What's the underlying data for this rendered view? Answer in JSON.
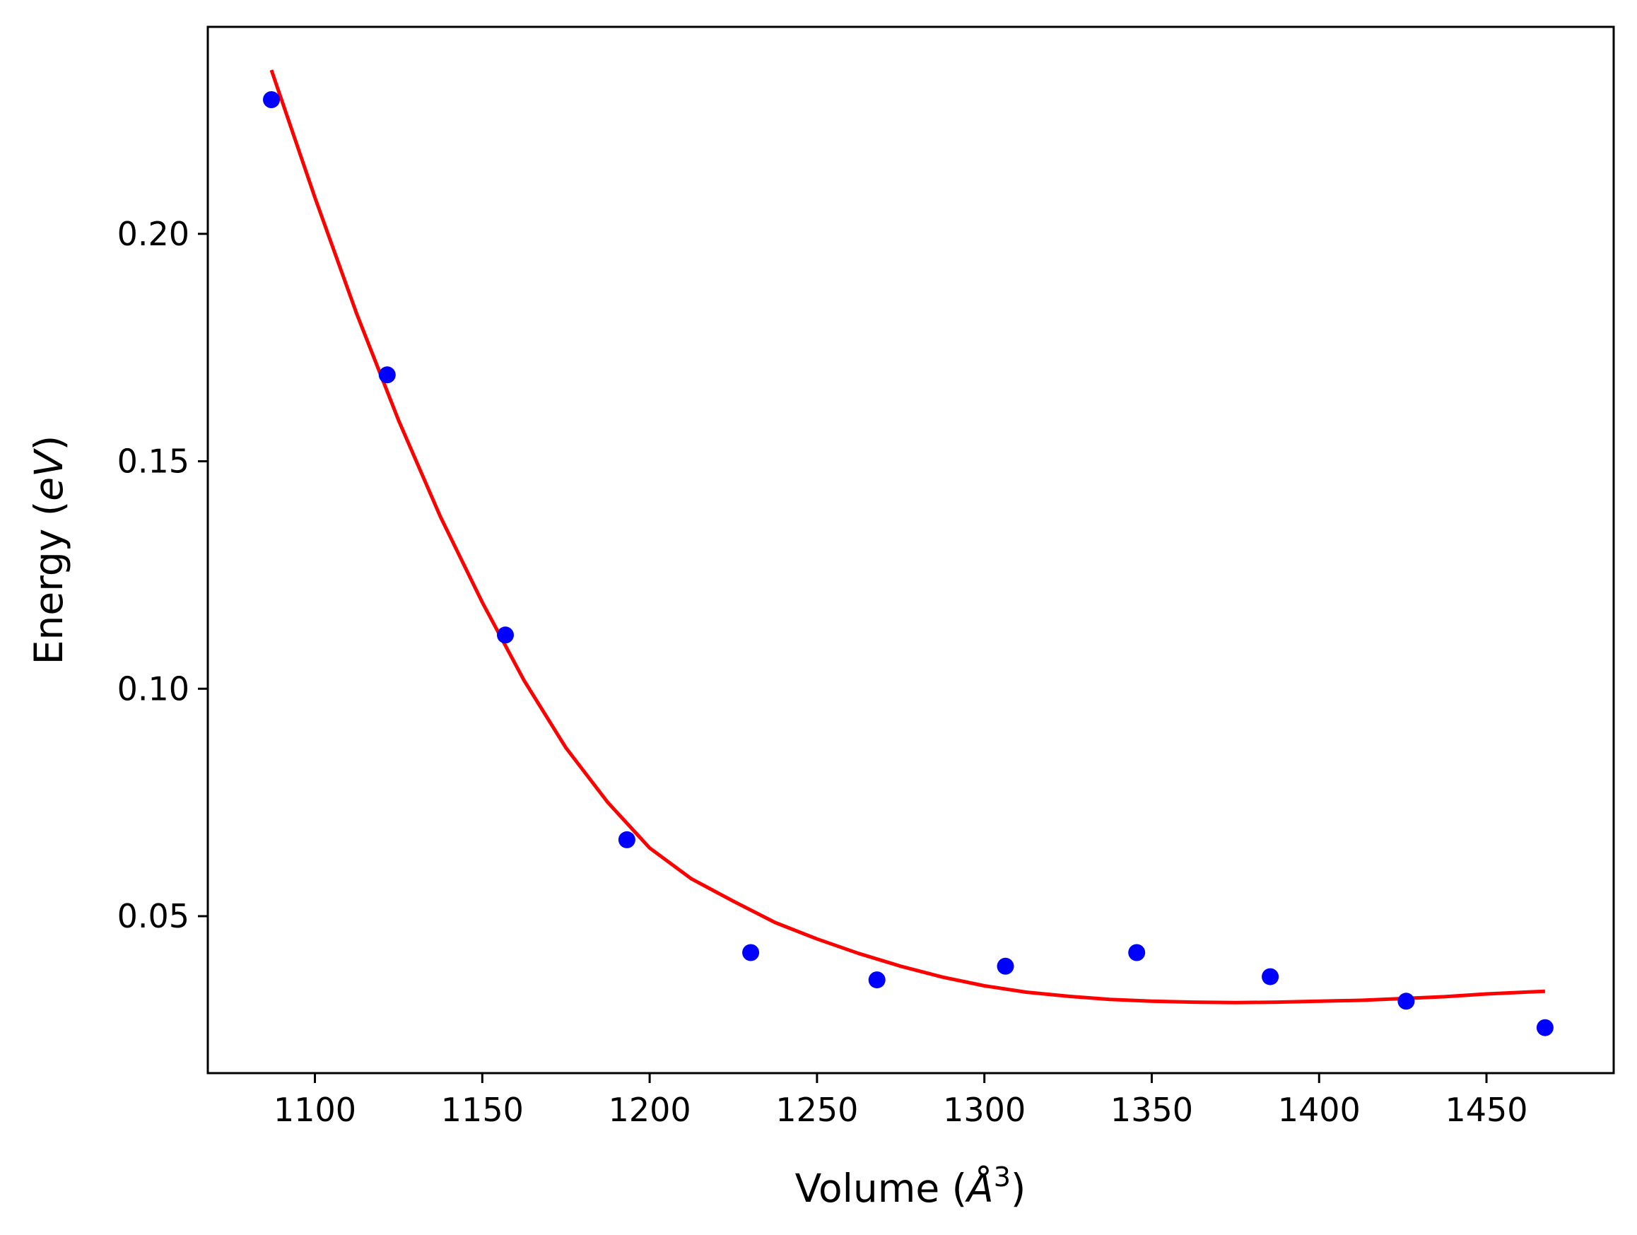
{
  "chart_data": {
    "type": "scatter",
    "title": "",
    "xlabel": {
      "prefix": "Volume (",
      "symbol": "Å",
      "superscript": "3",
      "suffix": ")"
    },
    "ylabel": {
      "prefix": "Energy (",
      "italic": "eV",
      "suffix": ")"
    },
    "xlim": [
      1068,
      1488
    ],
    "ylim": [
      0.0155,
      0.2455
    ],
    "x_ticks": [
      {
        "value": 1100,
        "label": "1100"
      },
      {
        "value": 1150,
        "label": "1150"
      },
      {
        "value": 1200,
        "label": "1200"
      },
      {
        "value": 1250,
        "label": "1250"
      },
      {
        "value": 1300,
        "label": "1300"
      },
      {
        "value": 1350,
        "label": "1350"
      },
      {
        "value": 1400,
        "label": "1400"
      },
      {
        "value": 1450,
        "label": "1450"
      }
    ],
    "y_ticks": [
      {
        "value": 0.05,
        "label": "0.05"
      },
      {
        "value": 0.1,
        "label": "0.10"
      },
      {
        "value": 0.15,
        "label": "0.15"
      },
      {
        "value": 0.2,
        "label": "0.20"
      }
    ],
    "grid": false,
    "series": [
      {
        "kind": "points",
        "color": "#0000ff",
        "points": [
          {
            "x": 1087.0,
            "y": 0.2295
          },
          {
            "x": 1121.6,
            "y": 0.169
          },
          {
            "x": 1156.9,
            "y": 0.1118
          },
          {
            "x": 1193.2,
            "y": 0.0668
          },
          {
            "x": 1230.2,
            "y": 0.042
          },
          {
            "x": 1267.9,
            "y": 0.036
          },
          {
            "x": 1306.3,
            "y": 0.039
          },
          {
            "x": 1345.5,
            "y": 0.042
          },
          {
            "x": 1385.4,
            "y": 0.0367
          },
          {
            "x": 1426.0,
            "y": 0.0313
          },
          {
            "x": 1467.5,
            "y": 0.0255
          }
        ]
      },
      {
        "kind": "line",
        "color": "#ff0000",
        "points": [
          {
            "x": 1087.0,
            "y": 0.236
          },
          {
            "x": 1100.0,
            "y": 0.208
          },
          {
            "x": 1112.5,
            "y": 0.1824
          },
          {
            "x": 1125.0,
            "y": 0.159
          },
          {
            "x": 1137.5,
            "y": 0.1378
          },
          {
            "x": 1150.0,
            "y": 0.119
          },
          {
            "x": 1162.5,
            "y": 0.1018
          },
          {
            "x": 1175.0,
            "y": 0.087
          },
          {
            "x": 1187.5,
            "y": 0.075
          },
          {
            "x": 1200.0,
            "y": 0.065
          },
          {
            "x": 1212.5,
            "y": 0.0582
          },
          {
            "x": 1225.0,
            "y": 0.0533
          },
          {
            "x": 1237.5,
            "y": 0.0486
          },
          {
            "x": 1250.0,
            "y": 0.045
          },
          {
            "x": 1262.5,
            "y": 0.0418
          },
          {
            "x": 1275.0,
            "y": 0.039
          },
          {
            "x": 1287.5,
            "y": 0.0366
          },
          {
            "x": 1300.0,
            "y": 0.0347
          },
          {
            "x": 1312.5,
            "y": 0.0333
          },
          {
            "x": 1325.0,
            "y": 0.0324
          },
          {
            "x": 1337.5,
            "y": 0.0317
          },
          {
            "x": 1350.0,
            "y": 0.0313
          },
          {
            "x": 1362.5,
            "y": 0.0311
          },
          {
            "x": 1375.0,
            "y": 0.031
          },
          {
            "x": 1387.5,
            "y": 0.0311
          },
          {
            "x": 1400.0,
            "y": 0.0313
          },
          {
            "x": 1412.5,
            "y": 0.0315
          },
          {
            "x": 1425.0,
            "y": 0.0319
          },
          {
            "x": 1437.5,
            "y": 0.0323
          },
          {
            "x": 1450.0,
            "y": 0.0329
          },
          {
            "x": 1467.5,
            "y": 0.0335
          }
        ]
      }
    ]
  }
}
